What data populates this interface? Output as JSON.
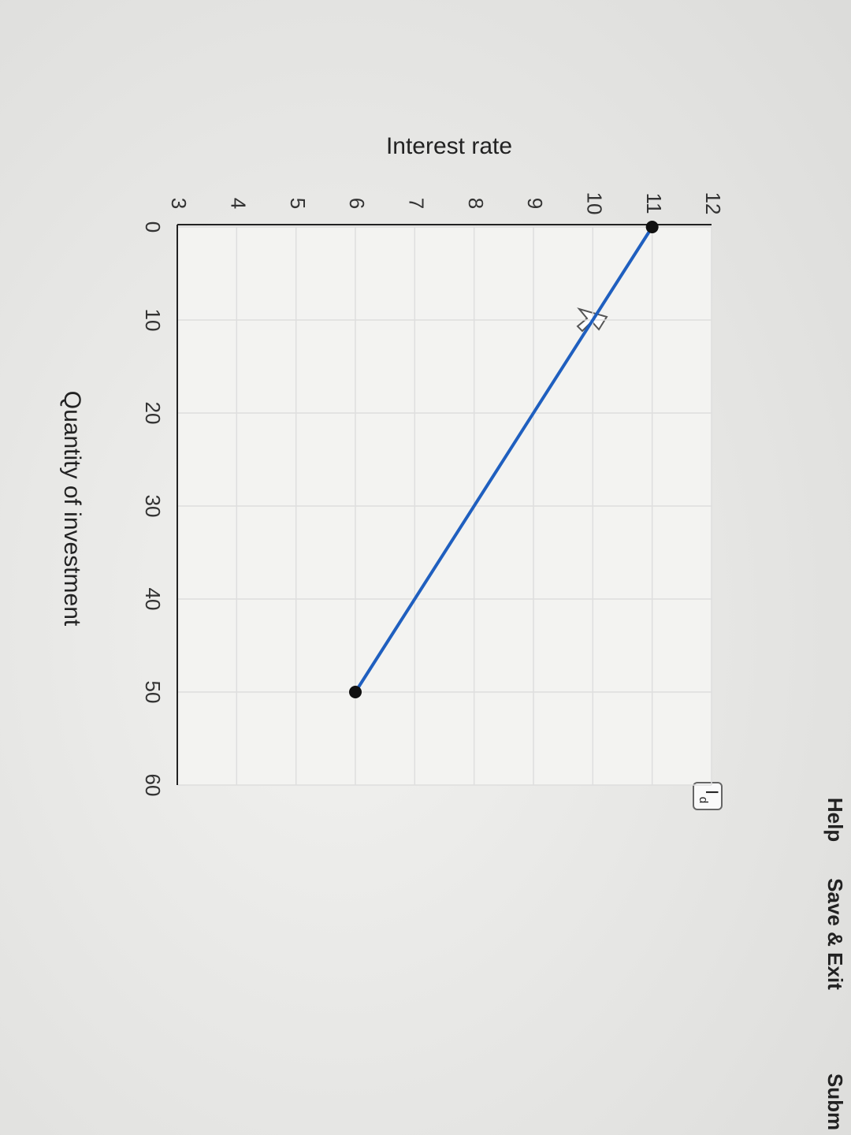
{
  "ui": {
    "help": "Help",
    "save_exit": "Save & Exit",
    "submit": "Subm"
  },
  "chart_data": {
    "type": "line",
    "y_label": "Interest rate",
    "x_label": "Quantity of investment",
    "x": [
      0,
      50
    ],
    "series": [
      {
        "name": "I",
        "subscript": "d",
        "color": "#1f5fbf",
        "values": [
          11,
          6
        ]
      }
    ],
    "xlim": [
      0,
      60
    ],
    "xticks": [
      0,
      10,
      20,
      30,
      40,
      50,
      60
    ],
    "ylim": [
      3,
      12
    ],
    "yticks": [
      3,
      4,
      5,
      6,
      7,
      8,
      9,
      10,
      11,
      12
    ],
    "grid": true
  }
}
